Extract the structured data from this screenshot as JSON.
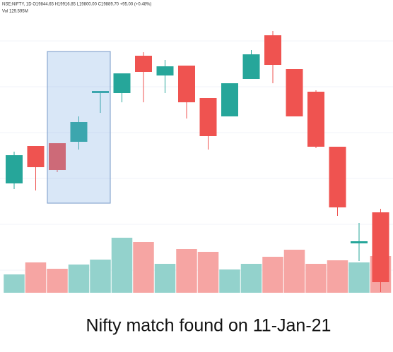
{
  "chart_data": {
    "type": "candlestick",
    "header": "NSE:NIFTY, 1D  O19844.65 H19916.85 L19800.00 C19889.70 +95.00 (+0.48%)",
    "volume_label": "Vol 129.595M",
    "title": "Nifty match found on 11-Jan-21",
    "up_color": "#26a69a",
    "down_color": "#ef5350",
    "up_volume_color": "#93d2cc",
    "down_volume_color": "#f6a5a3",
    "ylim": [
      0,
      415
    ],
    "y2lim": [
      0,
      415
    ],
    "open": [
      155,
      208,
      212,
      214,
      283,
      283,
      336,
      308,
      322,
      276,
      250,
      303,
      365,
      317,
      285,
      207,
      70,
      114
    ],
    "high": [
      200,
      208,
      212,
      250,
      286,
      311,
      341,
      330,
      322,
      276,
      297,
      344,
      371,
      317,
      287,
      207,
      99,
      119
    ],
    "low": [
      147,
      145,
      171,
      203,
      255,
      270,
      270,
      283,
      247,
      203,
      250,
      303,
      297,
      250,
      205,
      109,
      45,
      1
    ],
    "close": [
      195,
      178,
      174,
      242,
      286,
      311,
      313,
      321,
      270,
      222,
      297,
      338,
      323,
      250,
      207,
      121,
      73,
      15
    ],
    "volume": [
      26,
      43,
      34,
      40,
      47,
      78,
      72,
      41,
      62,
      58,
      33,
      41,
      51,
      61,
      41,
      46,
      43,
      52
    ]
  }
}
